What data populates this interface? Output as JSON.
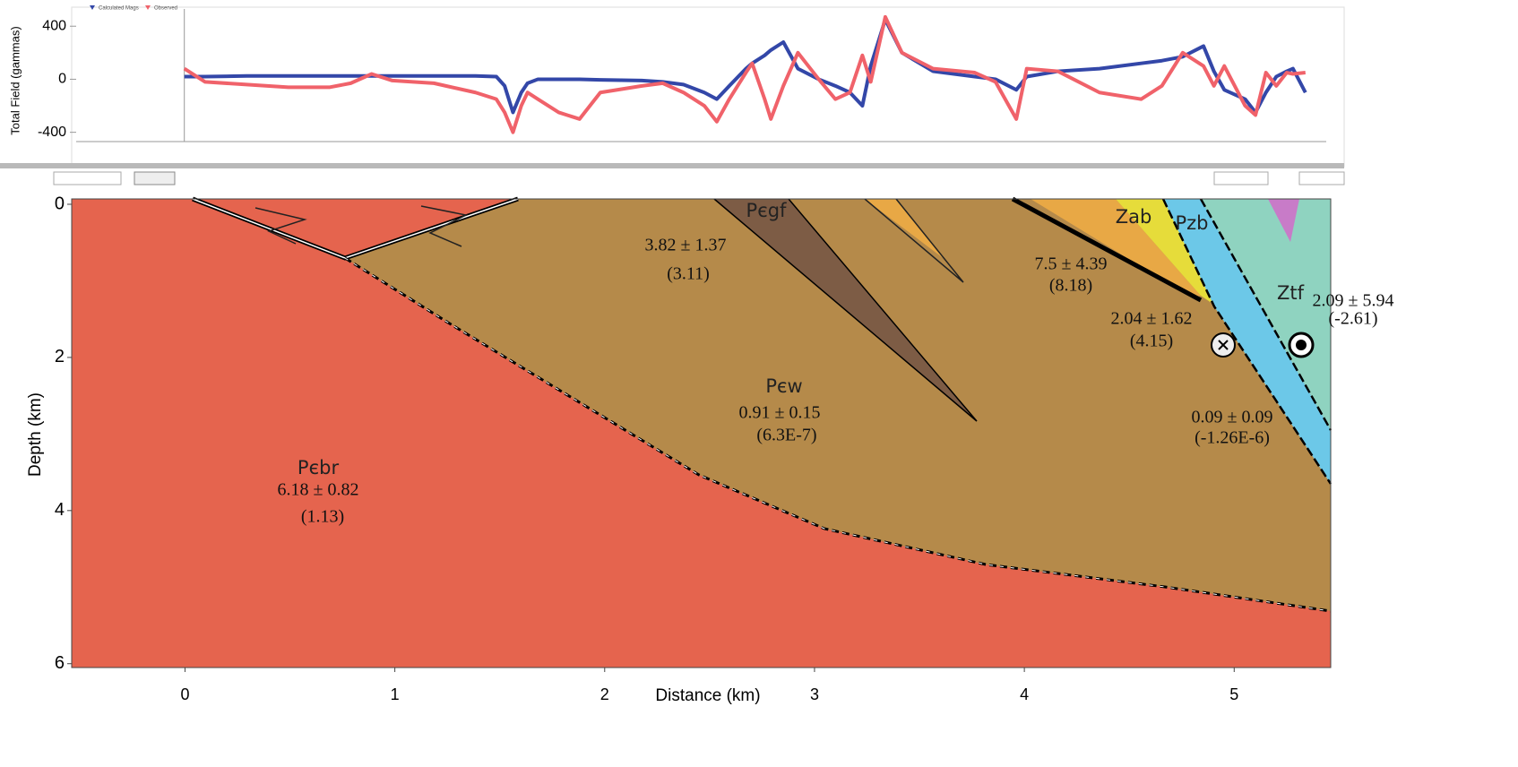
{
  "chart_data": [
    {
      "type": "line",
      "ylabel": "Total Field (gammas)",
      "xlim": [
        -520,
        5490
      ],
      "ylim": [
        -470,
        530
      ],
      "yticks": [
        -400,
        0,
        400
      ],
      "x": [
        0,
        100,
        300,
        500,
        700,
        800,
        900,
        1000,
        1200,
        1400,
        1500,
        1540,
        1580,
        1620,
        1650,
        1700,
        1800,
        1900,
        2000,
        2200,
        2300,
        2400,
        2500,
        2560,
        2620,
        2700,
        2730,
        2790,
        2820,
        2880,
        2950,
        3050,
        3130,
        3200,
        3260,
        3300,
        3370,
        3450,
        3600,
        3800,
        3900,
        4000,
        4050,
        4200,
        4400,
        4600,
        4700,
        4800,
        4900,
        4950,
        5000,
        5100,
        5150,
        5200,
        5250,
        5300,
        5330,
        5390
      ],
      "series": [
        {
          "name": "Calculated Mags",
          "color": "#3347a8",
          "values": [
            20,
            20,
            25,
            25,
            25,
            25,
            25,
            25,
            25,
            25,
            20,
            -50,
            -250,
            -100,
            -30,
            0,
            0,
            0,
            -5,
            -10,
            -20,
            -40,
            -100,
            -150,
            -50,
            80,
            120,
            180,
            220,
            280,
            80,
            0,
            -50,
            -100,
            -200,
            100,
            450,
            200,
            60,
            20,
            0,
            -80,
            20,
            60,
            80,
            120,
            140,
            170,
            250,
            60,
            -80,
            -150,
            -250,
            -100,
            20,
            60,
            80,
            -100
          ]
        },
        {
          "name": "Observed",
          "color": "#f0626a",
          "values": [
            80,
            -20,
            -40,
            -60,
            -60,
            -30,
            40,
            -10,
            -30,
            -100,
            -150,
            -250,
            -400,
            -200,
            -100,
            -150,
            -250,
            -300,
            -100,
            -50,
            -30,
            -100,
            -200,
            -320,
            -150,
            50,
            120,
            -150,
            -300,
            -50,
            200,
            0,
            -150,
            -100,
            180,
            -20,
            470,
            200,
            80,
            50,
            -20,
            -300,
            80,
            60,
            -100,
            -150,
            -50,
            200,
            100,
            -50,
            100,
            -200,
            -270,
            50,
            -50,
            50,
            40,
            50
          ]
        }
      ]
    },
    {
      "type": "section",
      "xlabel": "Distance (km)",
      "ylabel": "Depth (km)",
      "xlim": [
        -0.54,
        5.46
      ],
      "ylim": [
        -0.07,
        6.05
      ],
      "xticks": [
        0,
        1,
        2,
        3,
        4,
        5
      ],
      "yticks": [
        0,
        2,
        4,
        6
      ],
      "annotations": [
        "Pєgf",
        "3.82 ± 1.37",
        "(3.11)",
        "Pєw",
        "0.91 ± 0.15",
        "(6.3E-7)",
        "Pєbr",
        "6.18 ± 0.82",
        "(1.13)",
        "7.5 ± 4.39",
        "(8.18)",
        "Zab",
        "Pzb",
        "Ztf",
        "2.04 ± 1.62",
        "(4.15)",
        "2.09 ± 5.94",
        "(-2.61)",
        "0.09 ± 0.09",
        "(-1.26E-6)"
      ]
    }
  ]
}
